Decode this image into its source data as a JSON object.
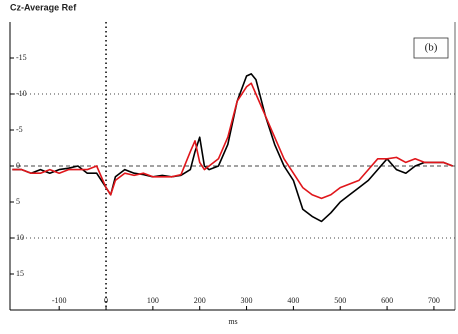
{
  "chart_data": {
    "type": "line",
    "title": "Cz-Average Ref",
    "annotation": "(b)",
    "x_label": "ms",
    "x": [
      -200,
      -180,
      -160,
      -140,
      -120,
      -100,
      -80,
      -60,
      -40,
      -20,
      0,
      10,
      20,
      40,
      60,
      80,
      100,
      120,
      140,
      160,
      180,
      190,
      200,
      210,
      220,
      240,
      260,
      280,
      300,
      310,
      320,
      340,
      360,
      380,
      400,
      420,
      440,
      460,
      480,
      500,
      520,
      540,
      560,
      580,
      600,
      620,
      640,
      660,
      680,
      700,
      720,
      740
    ],
    "series": [
      {
        "color": "#000000",
        "values": [
          0.5,
          0.5,
          1,
          0.5,
          1,
          0.5,
          0.3,
          0,
          1,
          1,
          3,
          4,
          1.5,
          0.5,
          1,
          1.2,
          1.5,
          1.3,
          1.5,
          1.3,
          0.5,
          -2,
          -4,
          0,
          0.5,
          0,
          -3,
          -9,
          -12.5,
          -12.8,
          -12,
          -7,
          -3,
          0,
          2,
          6,
          7,
          7.7,
          6.5,
          5,
          4,
          3,
          2,
          0.5,
          -1,
          0.5,
          1,
          0,
          -0.5,
          -0.5,
          -0.5,
          0
        ]
      },
      {
        "color": "#e0161b",
        "values": [
          0.5,
          0.5,
          1,
          1,
          0.5,
          1,
          0.5,
          0.5,
          0.5,
          0,
          3,
          4,
          2,
          1,
          1.3,
          1,
          1.5,
          1.5,
          1.5,
          1.2,
          -2,
          -3.5,
          -0.5,
          0.5,
          0,
          -1,
          -4,
          -9,
          -11,
          -11.5,
          -10,
          -7,
          -4,
          -1,
          1,
          3,
          4,
          4.5,
          4,
          3,
          2.5,
          2,
          0.5,
          -1,
          -1,
          -1.2,
          -0.5,
          -1,
          -0.5,
          -0.5,
          -0.5,
          0
        ]
      }
    ],
    "xlim": [
      -205,
      745
    ],
    "xticks": [
      -100,
      0,
      100,
      200,
      300,
      400,
      500,
      600,
      700
    ],
    "ylim": [
      -20,
      20
    ],
    "yticks": [
      -15,
      -10,
      -5,
      0,
      5,
      10,
      15
    ],
    "y_inverted": true,
    "grid_y": [
      -10,
      0,
      10
    ]
  }
}
